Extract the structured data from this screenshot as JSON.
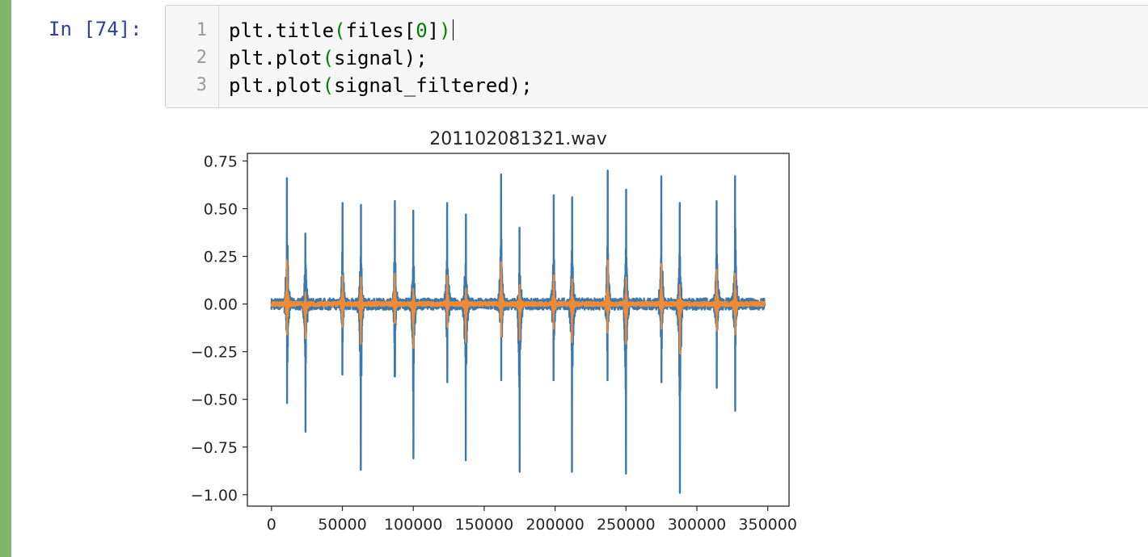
{
  "cell": {
    "prompt": "In [74]:",
    "lines": [
      {
        "num": "1",
        "text": "plt.title(files[0])"
      },
      {
        "num": "2",
        "text": "plt.plot(signal);"
      },
      {
        "num": "3",
        "text": "plt.plot(signal_filtered);"
      }
    ]
  },
  "colors": {
    "cell_bar": "#7fb86c",
    "prompt": "#303f9f",
    "series_signal": "#3a78b0",
    "series_filtered": "#f08a33"
  },
  "chart_data": {
    "type": "line",
    "title": "201102081321.wav",
    "xlabel": "",
    "ylabel": "",
    "xlim": [
      -17000,
      365000
    ],
    "ylim": [
      -1.06,
      0.79
    ],
    "xticks": [
      0,
      50000,
      100000,
      150000,
      200000,
      250000,
      300000,
      350000
    ],
    "xtick_labels": [
      "0",
      "50000",
      "100000",
      "150000",
      "200000",
      "250000",
      "300000",
      "350000"
    ],
    "yticks": [
      0.75,
      0.5,
      0.25,
      0.0,
      -0.25,
      -0.5,
      -0.75,
      -1.0
    ],
    "ytick_labels": [
      "0.75",
      "0.50",
      "0.25",
      "0.00",
      "−0.25",
      "−0.50",
      "−0.75",
      "−1.00"
    ],
    "x_max": 348000,
    "series": [
      {
        "color": "#3a78b0",
        "noise_amplitude": 0.03,
        "spikes": [
          {
            "x": 11000,
            "max": 0.66,
            "min": -0.52
          },
          {
            "x": 24000,
            "max": 0.37,
            "min": -0.67
          },
          {
            "x": 50000,
            "max": 0.53,
            "min": -0.37
          },
          {
            "x": 63000,
            "max": 0.52,
            "min": -0.87
          },
          {
            "x": 87000,
            "max": 0.54,
            "min": -0.38
          },
          {
            "x": 100000,
            "max": 0.49,
            "min": -0.81
          },
          {
            "x": 124000,
            "max": 0.53,
            "min": -0.41
          },
          {
            "x": 137000,
            "max": 0.47,
            "min": -0.82
          },
          {
            "x": 162000,
            "max": 0.68,
            "min": -0.4
          },
          {
            "x": 175000,
            "max": 0.4,
            "min": -0.88
          },
          {
            "x": 199000,
            "max": 0.57,
            "min": -0.4
          },
          {
            "x": 212000,
            "max": 0.56,
            "min": -0.88
          },
          {
            "x": 237000,
            "max": 0.7,
            "min": -0.4
          },
          {
            "x": 250000,
            "max": 0.6,
            "min": -0.89
          },
          {
            "x": 275000,
            "max": 0.67,
            "min": -0.41
          },
          {
            "x": 288000,
            "max": 0.53,
            "min": -0.99
          },
          {
            "x": 314000,
            "max": 0.54,
            "min": -0.44
          },
          {
            "x": 327000,
            "max": 0.67,
            "min": -0.56
          }
        ]
      },
      {
        "color": "#f08a33",
        "noise_amplitude": 0.012,
        "spikes": [
          {
            "x": 11000,
            "max": 0.23,
            "min": -0.16
          },
          {
            "x": 24000,
            "max": 0.06,
            "min": -0.18
          },
          {
            "x": 50000,
            "max": 0.15,
            "min": -0.12
          },
          {
            "x": 63000,
            "max": 0.14,
            "min": -0.21
          },
          {
            "x": 87000,
            "max": 0.16,
            "min": -0.1
          },
          {
            "x": 100000,
            "max": 0.08,
            "min": -0.23
          },
          {
            "x": 124000,
            "max": 0.15,
            "min": -0.12
          },
          {
            "x": 137000,
            "max": 0.08,
            "min": -0.2
          },
          {
            "x": 162000,
            "max": 0.22,
            "min": -0.17
          },
          {
            "x": 175000,
            "max": 0.1,
            "min": -0.19
          },
          {
            "x": 199000,
            "max": 0.15,
            "min": -0.13
          },
          {
            "x": 212000,
            "max": 0.13,
            "min": -0.2
          },
          {
            "x": 237000,
            "max": 0.23,
            "min": -0.15
          },
          {
            "x": 250000,
            "max": 0.14,
            "min": -0.21
          },
          {
            "x": 275000,
            "max": 0.21,
            "min": -0.13
          },
          {
            "x": 288000,
            "max": 0.1,
            "min": -0.26
          },
          {
            "x": 314000,
            "max": 0.18,
            "min": -0.14
          },
          {
            "x": 327000,
            "max": 0.16,
            "min": -0.16
          }
        ]
      }
    ]
  }
}
